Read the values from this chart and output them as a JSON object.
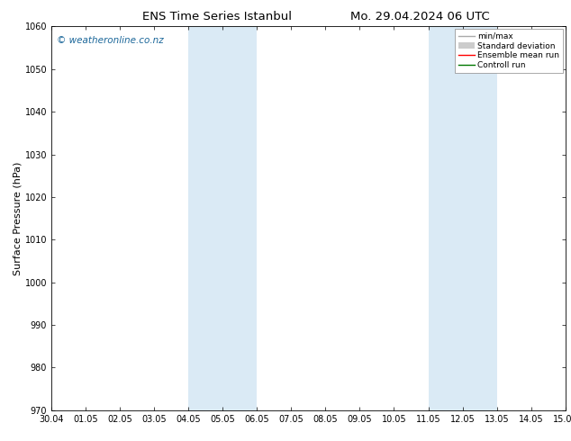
{
  "title_left": "ENS Time Series Istanbul",
  "title_right": "Mo. 29.04.2024 06 UTC",
  "ylabel": "Surface Pressure (hPa)",
  "ylim": [
    970,
    1060
  ],
  "yticks": [
    970,
    980,
    990,
    1000,
    1010,
    1020,
    1030,
    1040,
    1050,
    1060
  ],
  "x_start": "2024-04-30",
  "x_end": "2024-05-15",
  "xtick_labels": [
    "30.04",
    "01.05",
    "02.05",
    "03.05",
    "04.05",
    "05.05",
    "06.05",
    "07.05",
    "08.05",
    "09.05",
    "10.05",
    "11.05",
    "12.05",
    "13.05",
    "14.05",
    "15.05"
  ],
  "shaded_bands": [
    {
      "x0": "2024-05-04",
      "x1": "2024-05-06"
    },
    {
      "x0": "2024-05-11",
      "x1": "2024-05-13"
    }
  ],
  "band_color": "#daeaf5",
  "background_color": "#ffffff",
  "watermark": "© weatheronline.co.nz",
  "watermark_color": "#1a6699",
  "legend_labels": [
    "min/max",
    "Standard deviation",
    "Ensemble mean run",
    "Controll run"
  ],
  "legend_minmax_color": "#aaaaaa",
  "legend_std_color": "#cccccc",
  "legend_ens_color": "#ff0000",
  "legend_ctrl_color": "#007700",
  "title_fontsize": 9.5,
  "tick_label_fontsize": 7,
  "ylabel_fontsize": 8,
  "watermark_fontsize": 7.5,
  "legend_fontsize": 6.5
}
